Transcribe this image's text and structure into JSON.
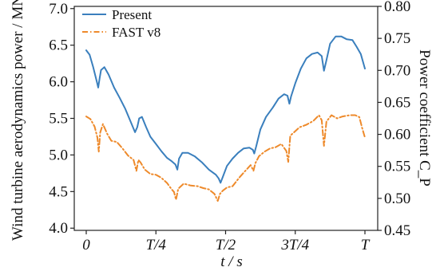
{
  "chart_data": {
    "type": "line",
    "xlabel": "t / s",
    "ylabel_left": "Wind turbine aerodynamics power / MN",
    "ylabel_right": "Power coefficient C_P",
    "x_ticks": [
      "0",
      "T/4",
      "T/2",
      "3T/4",
      "T"
    ],
    "y_left_ticks": [
      "4.0",
      "4.5",
      "5.0",
      "5.5",
      "6.0",
      "6.5",
      "7.0"
    ],
    "y_right_ticks": [
      "0.45",
      "0.50",
      "0.55",
      "0.60",
      "0.65",
      "0.70",
      "0.75",
      "0.80"
    ],
    "xlim": [
      0,
      1
    ],
    "ylim_left": [
      3.97,
      7.03
    ],
    "ylim_right": [
      0.45,
      0.8
    ],
    "grid": false,
    "legend_position": "top-left",
    "series": [
      {
        "name": "Present",
        "axis": "left",
        "color": "#3a7fbd",
        "style": "solid",
        "x": [
          0.0,
          0.012,
          0.025,
          0.038,
          0.043,
          0.048,
          0.053,
          0.065,
          0.08,
          0.1,
          0.12,
          0.14,
          0.16,
          0.175,
          0.183,
          0.19,
          0.2,
          0.215,
          0.23,
          0.25,
          0.27,
          0.29,
          0.305,
          0.32,
          0.327,
          0.333,
          0.345,
          0.365,
          0.39,
          0.415,
          0.44,
          0.465,
          0.475,
          0.482,
          0.49,
          0.505,
          0.525,
          0.545,
          0.565,
          0.585,
          0.598,
          0.603,
          0.61,
          0.625,
          0.645,
          0.67,
          0.69,
          0.71,
          0.722,
          0.729,
          0.735,
          0.75,
          0.77,
          0.79,
          0.81,
          0.83,
          0.845,
          0.853,
          0.861,
          0.875,
          0.895,
          0.915,
          0.935,
          0.955,
          0.97,
          0.985,
          1.0
        ],
        "values": [
          6.43,
          6.37,
          6.2,
          6.0,
          5.92,
          6.05,
          6.16,
          6.2,
          6.1,
          5.92,
          5.78,
          5.63,
          5.45,
          5.31,
          5.38,
          5.5,
          5.52,
          5.38,
          5.25,
          5.15,
          5.05,
          4.96,
          4.92,
          4.87,
          4.8,
          4.95,
          5.03,
          5.03,
          4.98,
          4.9,
          4.8,
          4.73,
          4.68,
          4.62,
          4.7,
          4.85,
          4.95,
          5.03,
          5.09,
          5.1,
          5.07,
          5.02,
          5.12,
          5.35,
          5.52,
          5.65,
          5.77,
          5.83,
          5.81,
          5.7,
          5.8,
          5.98,
          6.18,
          6.32,
          6.38,
          6.4,
          6.35,
          6.15,
          6.28,
          6.52,
          6.62,
          6.62,
          6.58,
          6.57,
          6.48,
          6.38,
          6.18
        ]
      },
      {
        "name": "FAST v8",
        "axis": "right",
        "color": "#ee8a2b",
        "style": "dashdot",
        "x": [
          0.0,
          0.015,
          0.03,
          0.04,
          0.045,
          0.05,
          0.06,
          0.075,
          0.09,
          0.11,
          0.13,
          0.15,
          0.17,
          0.18,
          0.187,
          0.195,
          0.21,
          0.23,
          0.25,
          0.27,
          0.29,
          0.305,
          0.315,
          0.322,
          0.33,
          0.35,
          0.375,
          0.4,
          0.42,
          0.44,
          0.46,
          0.472,
          0.48,
          0.49,
          0.505,
          0.525,
          0.55,
          0.575,
          0.59,
          0.6,
          0.607,
          0.62,
          0.64,
          0.66,
          0.68,
          0.7,
          0.718,
          0.725,
          0.732,
          0.745,
          0.765,
          0.79,
          0.815,
          0.835,
          0.845,
          0.853,
          0.862,
          0.88,
          0.9,
          0.92,
          0.945,
          0.965,
          0.98,
          0.99,
          1.0
        ],
        "values": [
          0.628,
          0.624,
          0.612,
          0.595,
          0.573,
          0.603,
          0.616,
          0.601,
          0.59,
          0.588,
          0.578,
          0.567,
          0.56,
          0.543,
          0.56,
          0.556,
          0.545,
          0.538,
          0.537,
          0.532,
          0.524,
          0.515,
          0.51,
          0.498,
          0.515,
          0.523,
          0.52,
          0.519,
          0.516,
          0.514,
          0.507,
          0.496,
          0.507,
          0.512,
          0.517,
          0.519,
          0.533,
          0.545,
          0.552,
          0.543,
          0.555,
          0.566,
          0.573,
          0.578,
          0.58,
          0.585,
          0.574,
          0.557,
          0.598,
          0.603,
          0.611,
          0.615,
          0.621,
          0.63,
          0.622,
          0.582,
          0.62,
          0.63,
          0.625,
          0.628,
          0.63,
          0.63,
          0.627,
          0.61,
          0.595
        ]
      }
    ]
  }
}
